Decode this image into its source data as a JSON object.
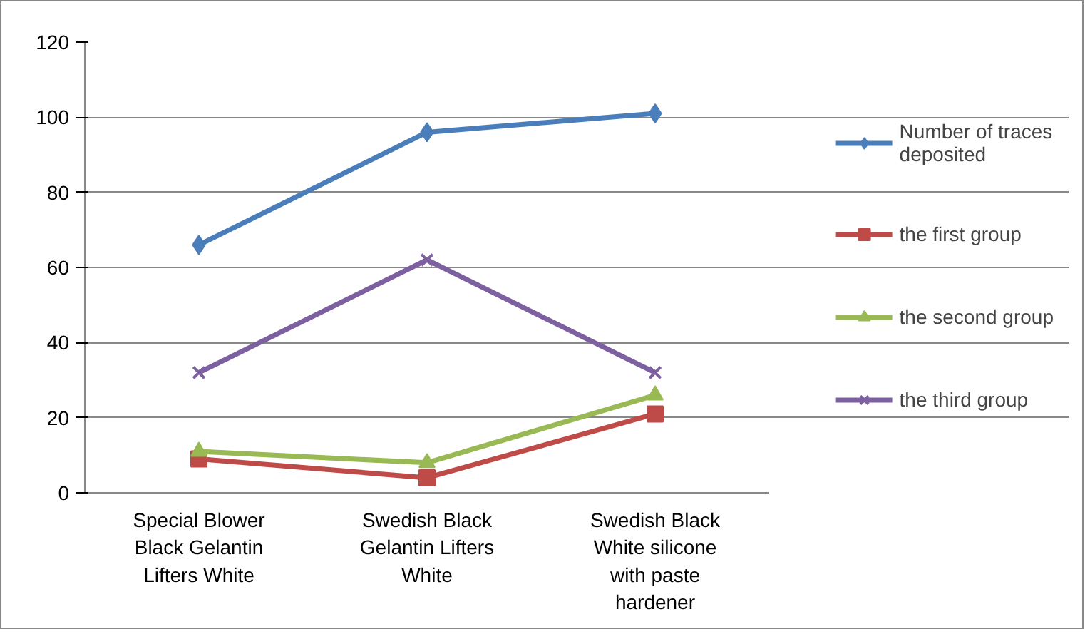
{
  "chart_data": {
    "type": "line",
    "categories": [
      "Special Blower Black Gelantin Lifters White",
      "Swedish Black Gelantin Lifters White",
      "Swedish Black White silicone with paste hardener"
    ],
    "series": [
      {
        "name": "Number of traces deposited",
        "color": "#4a7ebb",
        "marker": "diamond",
        "values": [
          66,
          96,
          101
        ]
      },
      {
        "name": "the first group",
        "color": "#be4b48",
        "marker": "square",
        "values": [
          9,
          4,
          21
        ]
      },
      {
        "name": "the second group",
        "color": "#98b954",
        "marker": "triangle",
        "values": [
          11,
          8,
          26
        ]
      },
      {
        "name": "the third group",
        "color": "#7d60a0",
        "marker": "cross",
        "values": [
          32,
          62,
          32
        ]
      }
    ],
    "ylim": [
      0,
      120
    ],
    "yticks": [
      0,
      20,
      40,
      60,
      80,
      100,
      120
    ],
    "grid": "y",
    "legend": "right"
  }
}
